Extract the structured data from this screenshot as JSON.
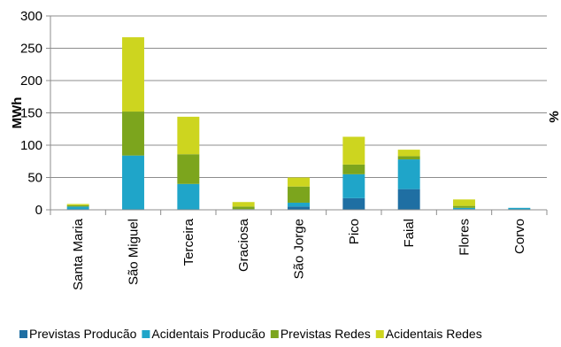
{
  "chart_data": {
    "type": "bar",
    "stacked": true,
    "categories": [
      "Santa Maria",
      "São Miguel",
      "Terceira",
      "Graciosa",
      "São Jorge",
      "Pico",
      "Faial",
      "Flores",
      "Corvo"
    ],
    "series": [
      {
        "name": "Previstas Producão",
        "color": "#1F6FA3",
        "values": [
          0,
          0,
          0,
          0,
          5,
          18,
          32,
          1,
          0
        ]
      },
      {
        "name": "Acidentais Producão",
        "color": "#1FA5C9",
        "values": [
          5,
          84,
          40,
          1,
          6,
          37,
          46,
          2,
          3
        ]
      },
      {
        "name": "Previstas Redes",
        "color": "#7CA51D",
        "values": [
          2,
          68,
          46,
          4,
          25,
          15,
          5,
          3,
          0
        ]
      },
      {
        "name": "Acidentais Redes",
        "color": "#CDD51F",
        "values": [
          2,
          115,
          58,
          7,
          14,
          43,
          10,
          10,
          0
        ]
      }
    ],
    "title": "",
    "xlabel": "",
    "ylabel": "MWh",
    "ylim": [
      0,
      300
    ],
    "yticks": [
      0,
      50,
      100,
      150,
      200,
      250,
      300
    ],
    "grid": true,
    "legend_position": "bottom",
    "right_axis_label_fragment": "%"
  }
}
